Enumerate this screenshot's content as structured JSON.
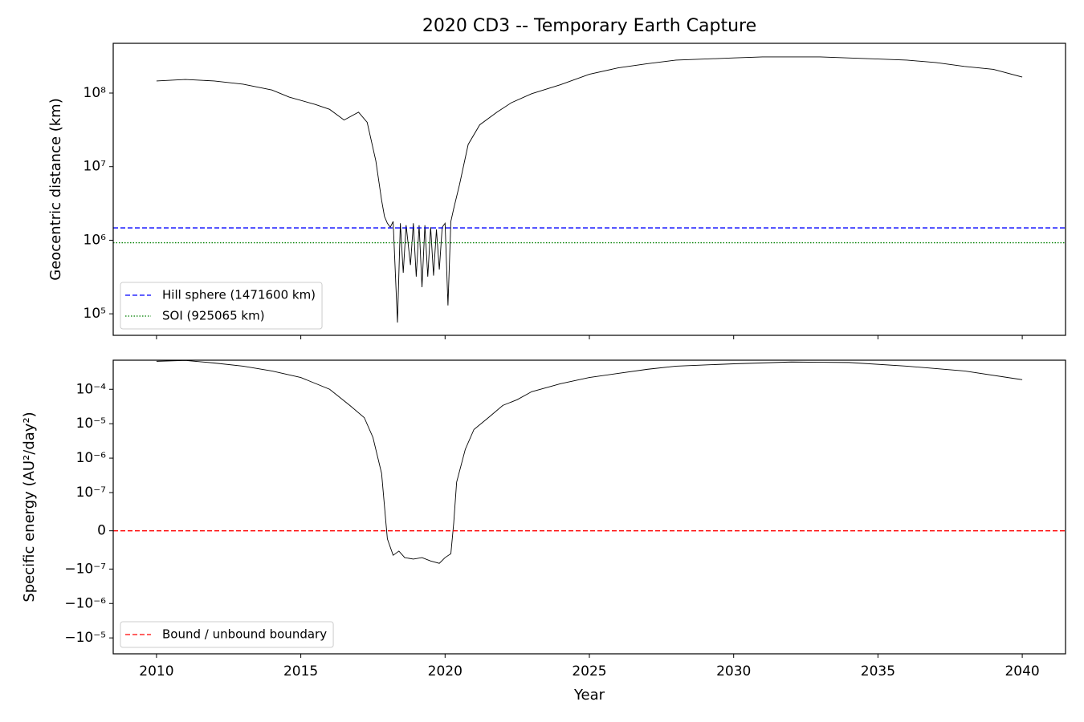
{
  "chart_data": [
    {
      "type": "line",
      "title": "2020 CD3 -- Temporary Earth Capture",
      "y_label": "Geocentric distance (km)",
      "y_scale": "log",
      "xlim": [
        2008.5,
        2041.5
      ],
      "ylim": [
        51000,
        474000000
      ],
      "xticks": [
        2010,
        2015,
        2020,
        2025,
        2030,
        2035,
        2040
      ],
      "yticks": [
        {
          "value": 100000,
          "label": "10⁵"
        },
        {
          "value": 1000000,
          "label": "10⁶"
        },
        {
          "value": 10000000,
          "label": "10⁷"
        },
        {
          "value": 100000000,
          "label": "10⁸"
        }
      ],
      "legend": "lower left",
      "series": [
        {
          "name": null,
          "color": "black",
          "x": [
            2010.0,
            2011.0,
            2012.0,
            2013.0,
            2014.0,
            2014.6,
            2015.5,
            2016.0,
            2016.5,
            2017.0,
            2017.3,
            2017.6,
            2017.8,
            2017.9,
            2018.0,
            2018.1,
            2018.2,
            2018.35,
            2018.45,
            2018.55,
            2018.65,
            2018.8,
            2018.9,
            2019.0,
            2019.1,
            2019.2,
            2019.3,
            2019.4,
            2019.5,
            2019.6,
            2019.7,
            2019.8,
            2019.9,
            2020.0,
            2020.1,
            2020.2,
            2020.3,
            2020.5,
            2020.8,
            2021.2,
            2021.8,
            2022.3,
            2023.0,
            2024.0,
            2025.0,
            2026.0,
            2027.0,
            2028.0,
            2029.0,
            2030.0,
            2031.0,
            2033.0,
            2035.0,
            2036.0,
            2037.0,
            2038.0,
            2039.0,
            2040.0
          ],
          "values": [
            146000000,
            153000000,
            146000000,
            132000000,
            110000000,
            88000000,
            70000000,
            60000000,
            43000000,
            55000000,
            40000000,
            12000000,
            3500000,
            2100000,
            1700000,
            1500000,
            1800000,
            76000,
            1700000,
            360000,
            1600000,
            460000,
            1700000,
            320000,
            1600000,
            230000,
            1600000,
            320000,
            1500000,
            330000,
            1400000,
            400000,
            1500000,
            1700000,
            130000,
            1800000,
            2700000,
            5700000,
            20000000,
            37000000,
            55000000,
            74000000,
            98000000,
            130000000,
            180000000,
            220000000,
            250000000,
            280000000,
            290000000,
            300000000,
            310000000,
            310000000,
            290000000,
            280000000,
            260000000,
            230000000,
            210000000,
            165000000
          ]
        },
        {
          "name": "Hill sphere (1471600 km)",
          "color": "blue",
          "linestyle": "dashed",
          "hline": 1471600
        },
        {
          "name": "SOI (925065 km)",
          "color": "green",
          "linestyle": "dotted",
          "hline": 925065
        }
      ]
    },
    {
      "type": "line",
      "x_label": "Year",
      "y_label": "Specific energy (AU²/day²)",
      "y_scale": "symlog",
      "linthresh": 1e-07,
      "linscale": 1,
      "xlim": [
        2008.5,
        2041.5
      ],
      "ylim": [
        -2.9e-05,
        0.0007
      ],
      "xticks": [
        2010,
        2015,
        2020,
        2025,
        2030,
        2035,
        2040
      ],
      "yticks": [
        {
          "value": -1e-05,
          "label": "−10⁻⁵"
        },
        {
          "value": -1e-06,
          "label": "−10⁻⁶"
        },
        {
          "value": -1e-07,
          "label": "−10⁻⁷"
        },
        0,
        {
          "value": 1e-07,
          "label": "10⁻⁷"
        },
        {
          "value": 1e-06,
          "label": "10⁻⁶"
        },
        {
          "value": 1e-05,
          "label": "10⁻⁵"
        },
        {
          "value": 0.0001,
          "label": "10⁻⁴"
        }
      ],
      "legend": "lower left",
      "series": [
        {
          "name": null,
          "color": "black",
          "x": [
            2010,
            2011,
            2012,
            2013,
            2014,
            2015,
            2016,
            2016.7,
            2017.2,
            2017.5,
            2017.8,
            2017.95,
            2018.0,
            2018.2,
            2018.4,
            2018.6,
            2018.9,
            2019.2,
            2019.5,
            2019.8,
            2020.0,
            2020.2,
            2020.3,
            2020.4,
            2020.7,
            2021.0,
            2021.5,
            2022.0,
            2022.5,
            2023,
            2024,
            2025,
            2026,
            2027,
            2028,
            2030,
            2032,
            2034,
            2036,
            2038,
            2040
          ],
          "values": [
            0.00065,
            0.00069,
            0.00058,
            0.00047,
            0.00034,
            0.00022,
            0.0001,
            3.4e-05,
            1.5e-05,
            4e-06,
            3.6e-07,
            2.1e-08,
            -2.1e-08,
            -6.4e-08,
            -5.3e-08,
            -7e-08,
            -7.4e-08,
            -7e-08,
            -7.9e-08,
            -8.5e-08,
            -7e-08,
            -6e-08,
            2.1e-08,
            2e-07,
            1.8e-06,
            6.8e-06,
            1.5e-05,
            3.4e-05,
            5e-05,
            8.5e-05,
            0.000145,
            0.00022,
            0.00029,
            0.00038,
            0.00047,
            0.00055,
            0.00062,
            0.0006,
            0.00047,
            0.00034,
            0.00019
          ]
        },
        {
          "name": "Bound / unbound boundary",
          "color": "red",
          "linestyle": "dashed",
          "hline": 0
        }
      ]
    }
  ]
}
